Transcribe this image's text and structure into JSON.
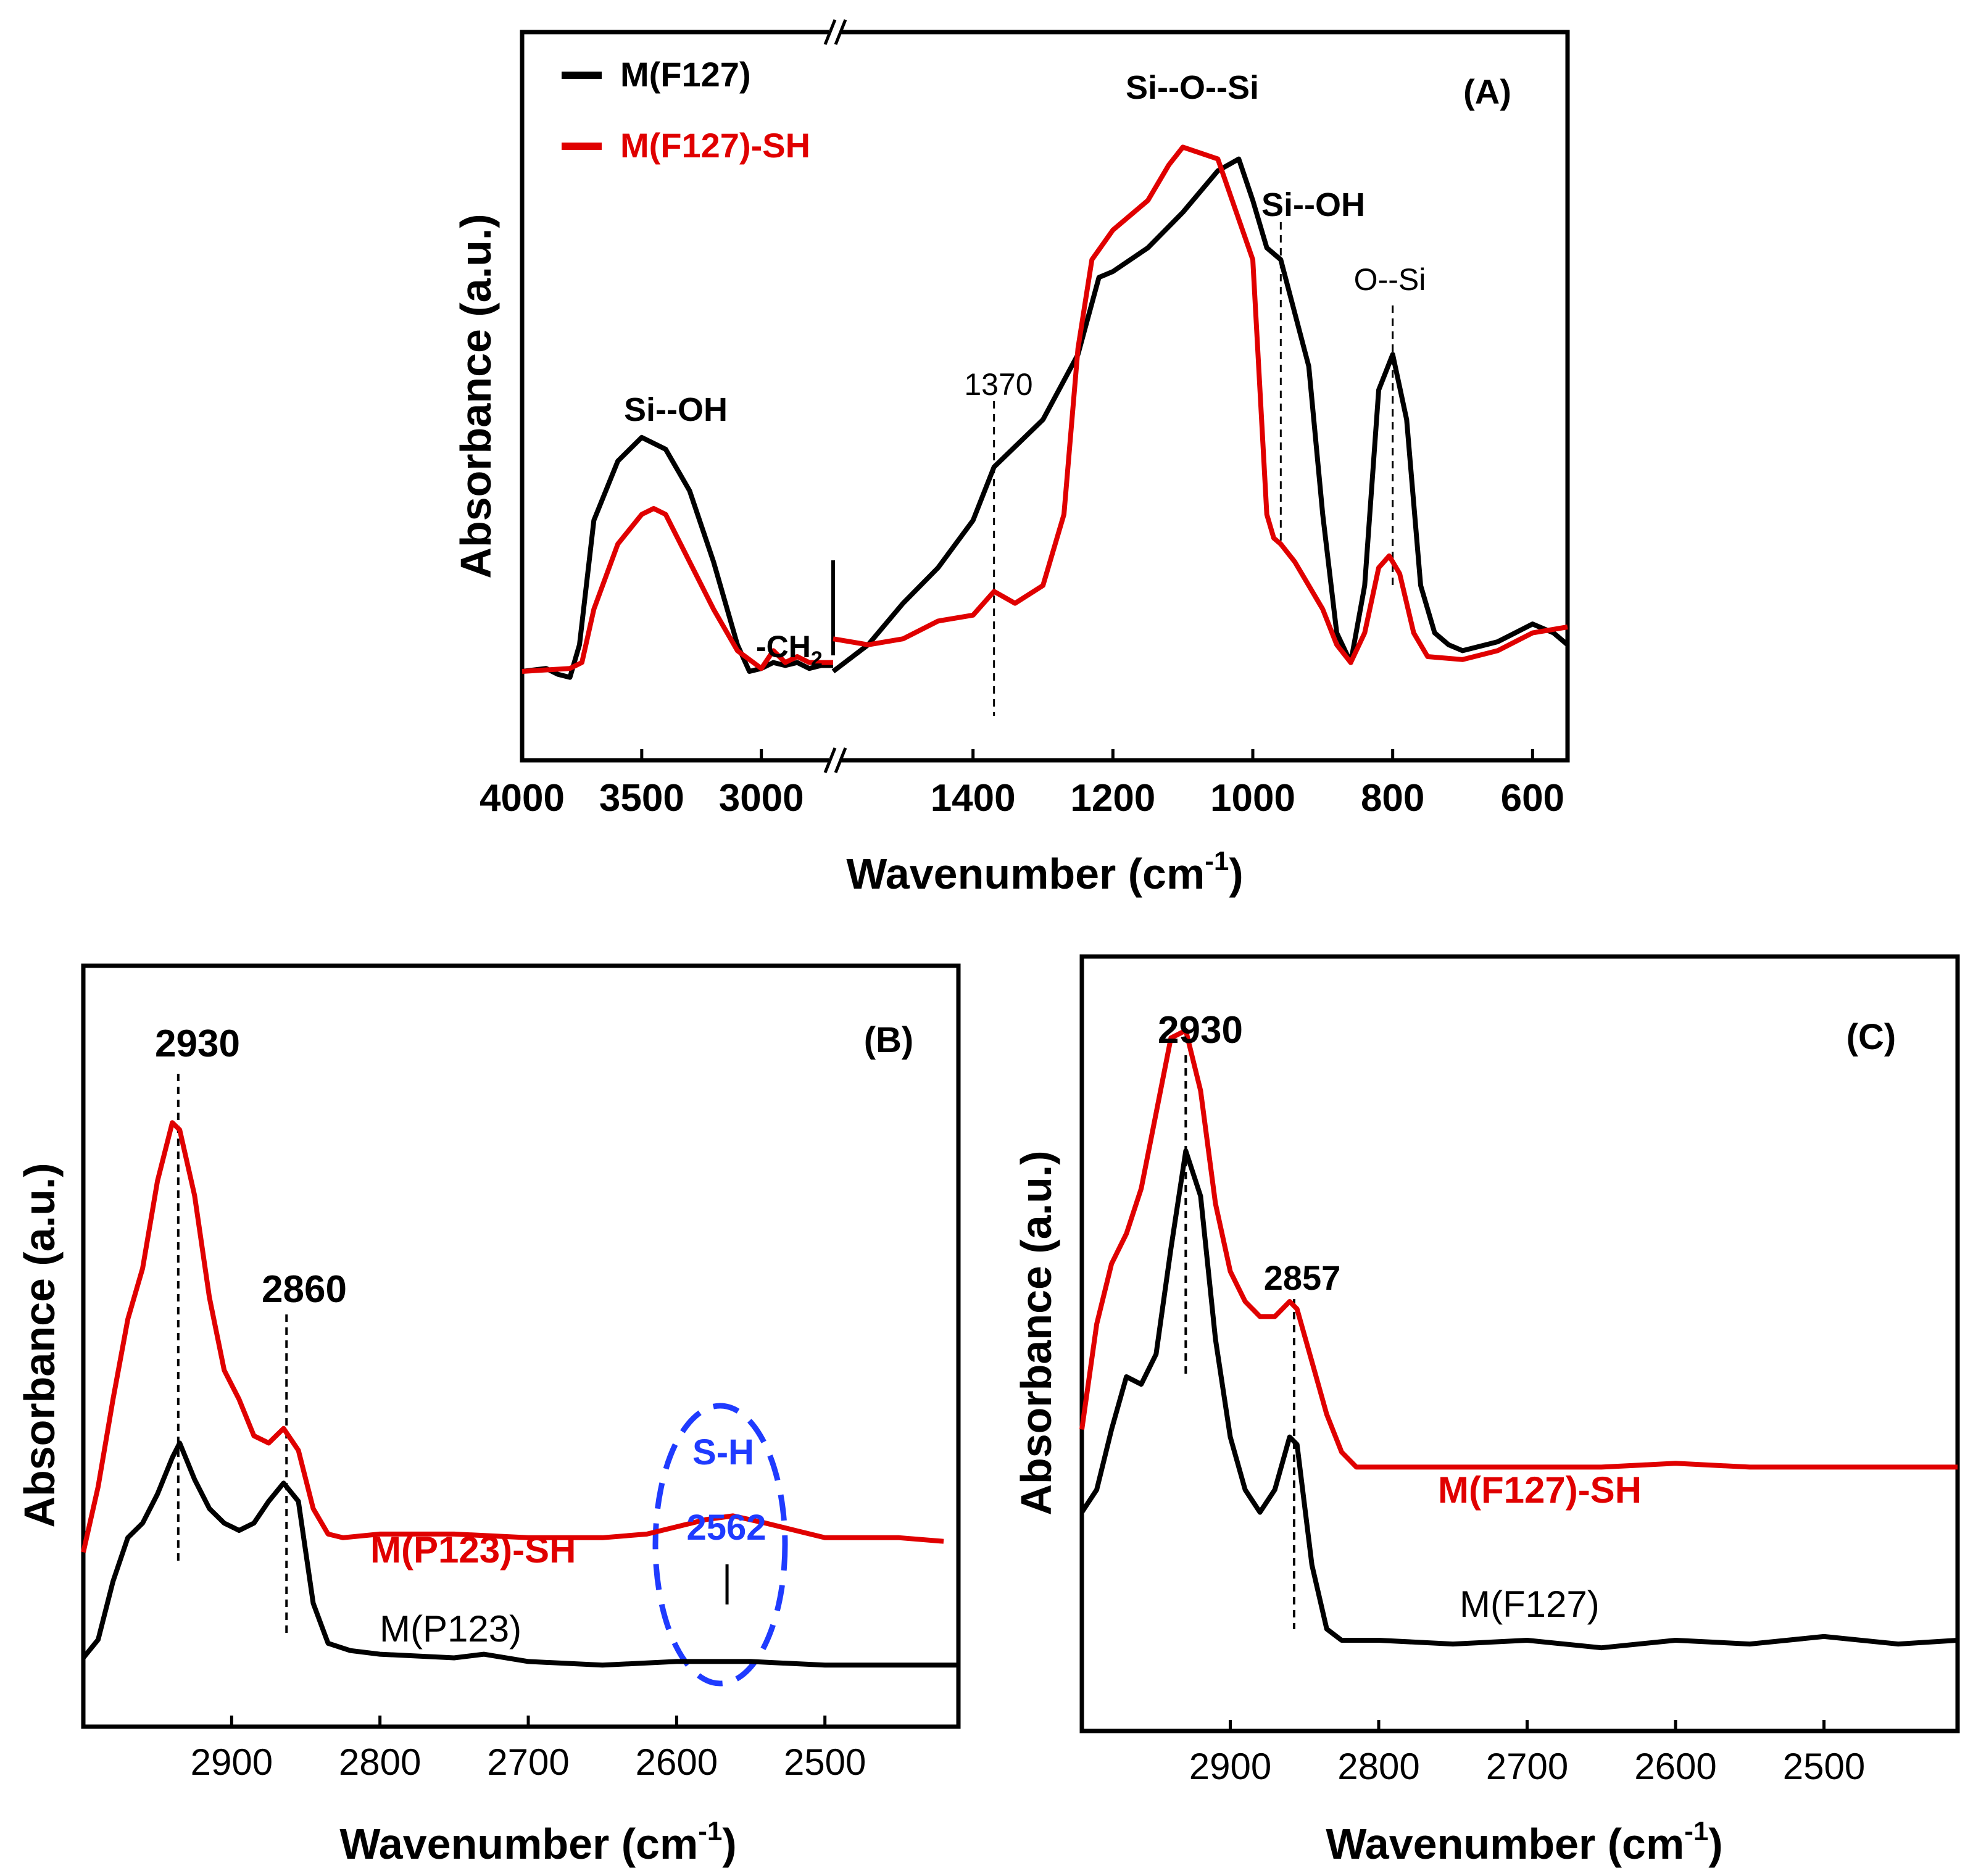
{
  "chart_data": [
    {
      "type": "line",
      "panel": "(A)",
      "xlabel": "Wavenumber (cm",
      "xlabel_sup": "-1",
      "xlabel_tail": ")",
      "ylabel": "Absorbance (a.u.)",
      "x_reversed": true,
      "broken_x_axis": true,
      "x_segments": [
        [
          4000,
          2700
        ],
        [
          1600,
          550
        ]
      ],
      "x_ticks": [
        {
          "v": 4000,
          "label": "4000"
        },
        {
          "v": 3500,
          "label": "3500"
        },
        {
          "v": 3000,
          "label": "3000"
        },
        {
          "v": 1400,
          "label": "1400"
        },
        {
          "v": 1200,
          "label": "1200"
        },
        {
          "v": 1000,
          "label": "1000"
        },
        {
          "v": 800,
          "label": "800"
        },
        {
          "v": 600,
          "label": "600"
        }
      ],
      "ylim": [
        0,
        1
      ],
      "legend": "top-left",
      "series": [
        {
          "name": "M(F127)",
          "color": "#000000",
          "points": [
            [
              4000,
              0.075
            ],
            [
              3900,
              0.08
            ],
            [
              3850,
              0.07
            ],
            [
              3800,
              0.065
            ],
            [
              3760,
              0.12
            ],
            [
              3700,
              0.33
            ],
            [
              3600,
              0.43
            ],
            [
              3500,
              0.47
            ],
            [
              3400,
              0.45
            ],
            [
              3300,
              0.38
            ],
            [
              3200,
              0.26
            ],
            [
              3100,
              0.12
            ],
            [
              3050,
              0.075
            ],
            [
              3000,
              0.08
            ],
            [
              2950,
              0.09
            ],
            [
              2900,
              0.085
            ],
            [
              2850,
              0.09
            ],
            [
              2800,
              0.08
            ],
            [
              2750,
              0.085
            ],
            [
              2700,
              0.085
            ],
            [
              1600,
              0.075
            ],
            [
              1550,
              0.12
            ],
            [
              1500,
              0.19
            ],
            [
              1450,
              0.25
            ],
            [
              1400,
              0.33
            ],
            [
              1370,
              0.42
            ],
            [
              1300,
              0.5
            ],
            [
              1250,
              0.61
            ],
            [
              1220,
              0.74
            ],
            [
              1200,
              0.75
            ],
            [
              1150,
              0.79
            ],
            [
              1100,
              0.85
            ],
            [
              1050,
              0.92
            ],
            [
              1020,
              0.94
            ],
            [
              1000,
              0.87
            ],
            [
              980,
              0.79
            ],
            [
              960,
              0.77
            ],
            [
              920,
              0.59
            ],
            [
              900,
              0.34
            ],
            [
              880,
              0.14
            ],
            [
              860,
              0.09
            ],
            [
              840,
              0.22
            ],
            [
              820,
              0.55
            ],
            [
              800,
              0.61
            ],
            [
              780,
              0.5
            ],
            [
              760,
              0.22
            ],
            [
              740,
              0.14
            ],
            [
              720,
              0.12
            ],
            [
              700,
              0.11
            ],
            [
              650,
              0.125
            ],
            [
              600,
              0.155
            ],
            [
              570,
              0.14
            ],
            [
              550,
              0.12
            ]
          ]
        },
        {
          "name": "M(F127)-SH",
          "color": "#e00000",
          "points": [
            [
              4000,
              0.075
            ],
            [
              3800,
              0.08
            ],
            [
              3750,
              0.09
            ],
            [
              3700,
              0.18
            ],
            [
              3600,
              0.29
            ],
            [
              3500,
              0.34
            ],
            [
              3450,
              0.35
            ],
            [
              3400,
              0.34
            ],
            [
              3300,
              0.26
            ],
            [
              3200,
              0.18
            ],
            [
              3100,
              0.11
            ],
            [
              3000,
              0.08
            ],
            [
              2950,
              0.11
            ],
            [
              2900,
              0.09
            ],
            [
              2850,
              0.1
            ],
            [
              2800,
              0.09
            ],
            [
              2750,
              0.09
            ],
            [
              2700,
              0.09
            ],
            [
              1600,
              0.13
            ],
            [
              1550,
              0.12
            ],
            [
              1500,
              0.13
            ],
            [
              1450,
              0.16
            ],
            [
              1400,
              0.17
            ],
            [
              1370,
              0.21
            ],
            [
              1340,
              0.19
            ],
            [
              1300,
              0.22
            ],
            [
              1270,
              0.34
            ],
            [
              1250,
              0.62
            ],
            [
              1230,
              0.77
            ],
            [
              1200,
              0.82
            ],
            [
              1150,
              0.87
            ],
            [
              1120,
              0.93
            ],
            [
              1100,
              0.96
            ],
            [
              1050,
              0.94
            ],
            [
              1000,
              0.77
            ],
            [
              980,
              0.34
            ],
            [
              970,
              0.3
            ],
            [
              960,
              0.29
            ],
            [
              940,
              0.26
            ],
            [
              920,
              0.22
            ],
            [
              900,
              0.18
            ],
            [
              880,
              0.12
            ],
            [
              860,
              0.09
            ],
            [
              840,
              0.14
            ],
            [
              820,
              0.25
            ],
            [
              805,
              0.27
            ],
            [
              790,
              0.24
            ],
            [
              770,
              0.14
            ],
            [
              750,
              0.1
            ],
            [
              700,
              0.095
            ],
            [
              650,
              0.11
            ],
            [
              600,
              0.14
            ],
            [
              550,
              0.15
            ]
          ]
        }
      ],
      "annotations": [
        {
          "text": "Si--OH",
          "x": 3480
        },
        {
          "text": "-CH",
          "sub": "2",
          "x": 2880
        },
        {
          "text": "1370",
          "x": 1370
        },
        {
          "text": "Si--O--Si",
          "x": 1100
        },
        {
          "text": "Si--OH",
          "x": 960
        },
        {
          "text": "O--Si",
          "x": 800
        }
      ]
    },
    {
      "type": "line",
      "panel": "(B)",
      "xlabel": "Wavenumber (cm",
      "xlabel_sup": "-1",
      "xlabel_tail": ")",
      "ylabel": "Absorbance (a.u.)",
      "x_reversed": true,
      "xlim": [
        3000,
        2410
      ],
      "x_ticks": [
        2900,
        2800,
        2700,
        2600,
        2500
      ],
      "ylim": [
        0,
        1
      ],
      "series": [
        {
          "name": "M(P123)-SH",
          "color": "#e00000",
          "points": [
            [
              3000,
              0.22
            ],
            [
              2990,
              0.31
            ],
            [
              2980,
              0.43
            ],
            [
              2970,
              0.54
            ],
            [
              2960,
              0.61
            ],
            [
              2950,
              0.73
            ],
            [
              2940,
              0.81
            ],
            [
              2935,
              0.8
            ],
            [
              2925,
              0.71
            ],
            [
              2915,
              0.57
            ],
            [
              2905,
              0.47
            ],
            [
              2895,
              0.43
            ],
            [
              2885,
              0.38
            ],
            [
              2875,
              0.37
            ],
            [
              2865,
              0.39
            ],
            [
              2855,
              0.36
            ],
            [
              2845,
              0.28
            ],
            [
              2835,
              0.245
            ],
            [
              2825,
              0.24
            ],
            [
              2800,
              0.245
            ],
            [
              2750,
              0.245
            ],
            [
              2700,
              0.24
            ],
            [
              2650,
              0.24
            ],
            [
              2620,
              0.245
            ],
            [
              2600,
              0.255
            ],
            [
              2580,
              0.265
            ],
            [
              2562,
              0.27
            ],
            [
              2540,
              0.26
            ],
            [
              2520,
              0.25
            ],
            [
              2500,
              0.24
            ],
            [
              2450,
              0.24
            ],
            [
              2420,
              0.235
            ]
          ]
        },
        {
          "name": "M(P123)",
          "color": "#000000",
          "points": [
            [
              3000,
              0.075
            ],
            [
              2990,
              0.1
            ],
            [
              2980,
              0.18
            ],
            [
              2970,
              0.24
            ],
            [
              2960,
              0.26
            ],
            [
              2950,
              0.3
            ],
            [
              2940,
              0.35
            ],
            [
              2935,
              0.37
            ],
            [
              2925,
              0.32
            ],
            [
              2915,
              0.28
            ],
            [
              2905,
              0.26
            ],
            [
              2895,
              0.25
            ],
            [
              2885,
              0.26
            ],
            [
              2875,
              0.29
            ],
            [
              2865,
              0.315
            ],
            [
              2855,
              0.29
            ],
            [
              2845,
              0.15
            ],
            [
              2835,
              0.095
            ],
            [
              2820,
              0.085
            ],
            [
              2800,
              0.08
            ],
            [
              2750,
              0.075
            ],
            [
              2730,
              0.08
            ],
            [
              2700,
              0.07
            ],
            [
              2650,
              0.065
            ],
            [
              2600,
              0.07
            ],
            [
              2550,
              0.07
            ],
            [
              2500,
              0.065
            ],
            [
              2450,
              0.065
            ],
            [
              2410,
              0.065
            ]
          ]
        }
      ],
      "annotations": [
        {
          "text": "2930",
          "x": 2936
        },
        {
          "text": "2860",
          "x": 2863
        },
        {
          "text": "S-H",
          "x": 2566
        },
        {
          "text": "2562",
          "x": 2566
        }
      ]
    },
    {
      "type": "line",
      "panel": "(C)",
      "xlabel": "Wavenumber (cm",
      "xlabel_sup": "-1",
      "xlabel_tail": ")",
      "ylabel": "Absorbance (a.u.)",
      "x_reversed": true,
      "xlim": [
        3000,
        2410
      ],
      "x_ticks": [
        2900,
        2800,
        2700,
        2600,
        2500
      ],
      "ylim": [
        0,
        1
      ],
      "series": [
        {
          "name": "M(F127)-SH",
          "color": "#e00000",
          "points": [
            [
              3000,
              0.38
            ],
            [
              2990,
              0.52
            ],
            [
              2980,
              0.6
            ],
            [
              2970,
              0.64
            ],
            [
              2960,
              0.7
            ],
            [
              2950,
              0.8
            ],
            [
              2940,
              0.9
            ],
            [
              2930,
              0.91
            ],
            [
              2920,
              0.83
            ],
            [
              2910,
              0.68
            ],
            [
              2900,
              0.59
            ],
            [
              2890,
              0.55
            ],
            [
              2880,
              0.53
            ],
            [
              2870,
              0.53
            ],
            [
              2860,
              0.55
            ],
            [
              2855,
              0.54
            ],
            [
              2845,
              0.47
            ],
            [
              2835,
              0.4
            ],
            [
              2825,
              0.35
            ],
            [
              2815,
              0.33
            ],
            [
              2800,
              0.33
            ],
            [
              2750,
              0.33
            ],
            [
              2700,
              0.33
            ],
            [
              2650,
              0.33
            ],
            [
              2600,
              0.335
            ],
            [
              2550,
              0.33
            ],
            [
              2500,
              0.33
            ],
            [
              2450,
              0.33
            ],
            [
              2410,
              0.33
            ]
          ]
        },
        {
          "name": "M(F127)",
          "color": "#000000",
          "points": [
            [
              3000,
              0.27
            ],
            [
              2990,
              0.3
            ],
            [
              2980,
              0.38
            ],
            [
              2970,
              0.45
            ],
            [
              2960,
              0.44
            ],
            [
              2950,
              0.48
            ],
            [
              2940,
              0.62
            ],
            [
              2930,
              0.75
            ],
            [
              2920,
              0.69
            ],
            [
              2910,
              0.5
            ],
            [
              2900,
              0.37
            ],
            [
              2890,
              0.3
            ],
            [
              2880,
              0.27
            ],
            [
              2870,
              0.3
            ],
            [
              2860,
              0.37
            ],
            [
              2855,
              0.36
            ],
            [
              2845,
              0.2
            ],
            [
              2835,
              0.115
            ],
            [
              2825,
              0.1
            ],
            [
              2800,
              0.1
            ],
            [
              2750,
              0.095
            ],
            [
              2700,
              0.1
            ],
            [
              2650,
              0.09
            ],
            [
              2600,
              0.1
            ],
            [
              2550,
              0.095
            ],
            [
              2500,
              0.105
            ],
            [
              2450,
              0.095
            ],
            [
              2410,
              0.1
            ]
          ]
        }
      ],
      "annotations": [
        {
          "text": "2930",
          "x": 2930
        },
        {
          "text": "2857",
          "x": 2857
        }
      ]
    }
  ]
}
